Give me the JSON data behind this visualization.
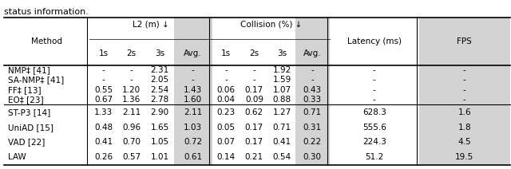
{
  "title_text": "status information.",
  "group1": [
    [
      "NMP‡ [41]",
      "-",
      "-",
      "2.31",
      "-",
      "-",
      "-",
      "1.92",
      "-",
      "-",
      "-"
    ],
    [
      "SA-NMP‡ [41]",
      "-",
      "-",
      "2.05",
      "-",
      "-",
      "-",
      "1.59",
      "-",
      "-",
      "-"
    ],
    [
      "FF‡ [13]",
      "0.55",
      "1.20",
      "2.54",
      "1.43",
      "0.06",
      "0.17",
      "1.07",
      "0.43",
      "-",
      "-"
    ],
    [
      "EO‡ [23]",
      "0.67",
      "1.36",
      "2.78",
      "1.60",
      "0.04",
      "0.09",
      "0.88",
      "0.33",
      "-",
      "-"
    ]
  ],
  "group2": [
    [
      "ST-P3 [14]",
      "1.33",
      "2.11",
      "2.90",
      "2.11",
      "0.23",
      "0.62",
      "1.27",
      "0.71",
      "628.3",
      "1.6"
    ],
    [
      "UniAD [15]",
      "0.48",
      "0.96",
      "1.65",
      "1.03",
      "0.05",
      "0.17",
      "0.71",
      "0.31",
      "555.6",
      "1.8"
    ],
    [
      "VAD [22]",
      "0.41",
      "0.70",
      "1.05",
      "0.72",
      "0.07",
      "0.17",
      "0.41",
      "0.22",
      "224.3",
      "4.5"
    ],
    [
      "LAW",
      "0.26",
      "0.57",
      "1.01",
      "0.61",
      "0.14",
      "0.21",
      "0.54",
      "0.30",
      "51.2",
      "19.5"
    ]
  ],
  "shaded_col_color": "#d3d3d3",
  "bg_color": "#ffffff",
  "font_size": 7.5,
  "title_font_size": 8.0
}
